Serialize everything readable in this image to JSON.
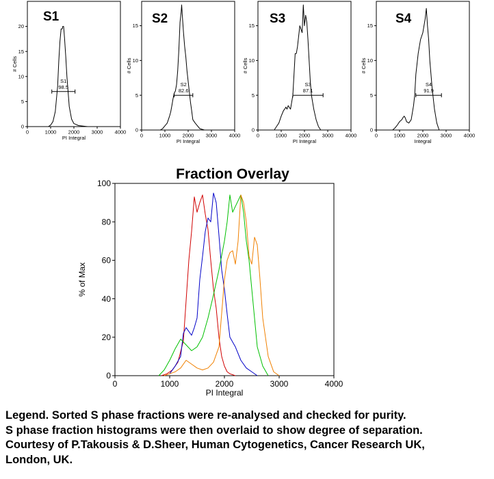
{
  "chart_data": [
    {
      "type": "line",
      "title": "S1",
      "xlabel": "PI Integral",
      "ylabel": "# Cells",
      "xlim": [
        0,
        4000
      ],
      "ylim": [
        0,
        25
      ],
      "xticks": [
        "0",
        "1000",
        "2000",
        "3000",
        "4000"
      ],
      "yticks": [
        "0",
        "5",
        "10",
        "15",
        "20"
      ],
      "gate": {
        "name": "S1",
        "value": "98.5",
        "x_range": [
          1050,
          2050
        ],
        "y": 7
      },
      "series": [
        {
          "color": "#000000",
          "x": [
            900,
            1000,
            1100,
            1200,
            1300,
            1350,
            1400,
            1450,
            1500,
            1520,
            1560,
            1600,
            1650,
            1700,
            1750,
            1800,
            1900,
            2000,
            2200,
            2600
          ],
          "y": [
            0,
            0.3,
            1,
            3,
            8,
            13,
            17,
            19.5,
            19.5,
            20,
            20,
            17.5,
            14,
            10,
            7,
            4,
            1.5,
            0.6,
            0.2,
            0
          ]
        }
      ]
    },
    {
      "type": "line",
      "title": "S2",
      "xlabel": "PI Integral",
      "ylabel": "# Cells",
      "xlim": [
        0,
        4000
      ],
      "ylim": [
        0,
        18.5
      ],
      "xticks": [
        "0",
        "1000",
        "2000",
        "3000",
        "4000"
      ],
      "yticks": [
        "0",
        "5",
        "10",
        "15"
      ],
      "gate": {
        "name": "S2",
        "value": "82.6",
        "x_range": [
          1400,
          2200
        ],
        "y": 5
      },
      "series": [
        {
          "color": "#000000",
          "x": [
            800,
            900,
            1000,
            1100,
            1200,
            1250,
            1300,
            1350,
            1400,
            1450,
            1500,
            1550,
            1600,
            1650,
            1700,
            1720,
            1760,
            1800,
            1850,
            1900,
            1950,
            2000,
            2050,
            2100,
            2150,
            2200,
            2300,
            2500,
            2700
          ],
          "y": [
            0,
            0.2,
            0.6,
            1,
            2,
            2.6,
            3.5,
            4.5,
            5.3,
            5.6,
            6.5,
            8.5,
            11.5,
            15.5,
            17,
            18,
            16,
            14,
            12,
            10.5,
            8.5,
            7,
            5.5,
            4,
            2.8,
            1.5,
            1,
            0.2,
            0
          ]
        }
      ]
    },
    {
      "type": "line",
      "title": "S3",
      "xlabel": "PI Integral",
      "ylabel": "# Cells",
      "xlim": [
        0,
        4000
      ],
      "ylim": [
        0,
        18.5
      ],
      "xticks": [
        "0",
        "1000",
        "2000",
        "3000",
        "4000"
      ],
      "yticks": [
        "0",
        "5",
        "10",
        "15"
      ],
      "gate": {
        "name": "S3",
        "value": "87.1",
        "x_range": [
          1500,
          2800
        ],
        "y": 5
      },
      "series": [
        {
          "color": "#000000",
          "x": [
            700,
            800,
            900,
            1000,
            1100,
            1150,
            1200,
            1250,
            1300,
            1400,
            1500,
            1550,
            1600,
            1650,
            1700,
            1800,
            1900,
            1950,
            2000,
            2050,
            2100,
            2150,
            2200,
            2250,
            2300,
            2400,
            2500,
            2600,
            2700
          ],
          "y": [
            0,
            0.5,
            1,
            2,
            2.8,
            3,
            3.3,
            3,
            3.5,
            3,
            5,
            8,
            11,
            11,
            12,
            15,
            14,
            18,
            15,
            16.5,
            15.5,
            13,
            10,
            7,
            5,
            3,
            1.5,
            0.5,
            0
          ]
        }
      ]
    },
    {
      "type": "line",
      "title": "S4",
      "xlabel": "Integral",
      "ylabel": "# Cells",
      "xlim": [
        0,
        4000
      ],
      "ylim": [
        0,
        18.5
      ],
      "xticks": [
        "0",
        "1000",
        "2000",
        "3000",
        "4000"
      ],
      "yticks": [
        "0",
        "5",
        "10",
        "15"
      ],
      "gate": {
        "name": "S4",
        "value": "91.9",
        "x_range": [
          1700,
          2800
        ],
        "y": 5
      },
      "series": [
        {
          "color": "#000000",
          "x": [
            700,
            800,
            900,
            1000,
            1100,
            1150,
            1200,
            1250,
            1300,
            1400,
            1500,
            1550,
            1600,
            1650,
            1700,
            1800,
            1900,
            2000,
            2050,
            2100,
            2150,
            2200,
            2250,
            2300,
            2400,
            2500,
            2600,
            2700
          ],
          "y": [
            0,
            0.3,
            0.7,
            1.2,
            1.5,
            1.8,
            2,
            1.7,
            1.2,
            1,
            1.5,
            2.5,
            3.5,
            5,
            8,
            11,
            13,
            14,
            15,
            16,
            17.5,
            15,
            13,
            10,
            6,
            3,
            1,
            0
          ]
        }
      ]
    },
    {
      "type": "line",
      "title": "Fraction Overlay",
      "xlabel": "PI Integral",
      "ylabel": "% of Max",
      "xlim": [
        0,
        4000
      ],
      "ylim": [
        0,
        100
      ],
      "xticks": [
        "0",
        "1000",
        "2000",
        "3000",
        "4000"
      ],
      "yticks": [
        "0",
        "20",
        "40",
        "60",
        "80",
        "100"
      ],
      "series": [
        {
          "color": "#d00000",
          "x": [
            850,
            950,
            1050,
            1150,
            1250,
            1350,
            1400,
            1450,
            1500,
            1550,
            1600,
            1650,
            1700,
            1750,
            1800,
            1850,
            1900,
            1950,
            2000,
            2050,
            2100,
            2200
          ],
          "y": [
            0,
            1,
            3,
            7,
            18,
            60,
            75,
            93,
            85,
            90,
            94,
            84,
            76,
            60,
            45,
            35,
            20,
            10,
            5,
            2,
            1,
            0
          ]
        },
        {
          "color": "#0000c8",
          "x": [
            1000,
            1100,
            1200,
            1250,
            1300,
            1350,
            1400,
            1450,
            1500,
            1550,
            1600,
            1650,
            1700,
            1750,
            1800,
            1850,
            1900,
            1950,
            2000,
            2050,
            2100,
            2200,
            2300,
            2400,
            2500,
            2600
          ],
          "y": [
            1,
            5,
            10,
            22,
            25,
            23,
            21,
            25,
            30,
            50,
            62,
            75,
            82,
            80,
            95,
            90,
            73,
            55,
            45,
            32,
            20,
            15,
            8,
            4,
            2,
            0
          ]
        },
        {
          "color": "#00c000",
          "x": [
            800,
            900,
            1000,
            1100,
            1200,
            1300,
            1400,
            1500,
            1600,
            1700,
            1800,
            1900,
            2000,
            2050,
            2100,
            2150,
            2200,
            2250,
            2300,
            2350,
            2400,
            2450,
            2500,
            2550,
            2600,
            2700,
            2800
          ],
          "y": [
            0,
            3,
            8,
            14,
            19,
            16,
            13,
            15,
            20,
            30,
            42,
            55,
            70,
            80,
            94,
            85,
            88,
            91,
            94,
            85,
            70,
            60,
            45,
            30,
            15,
            5,
            0
          ]
        },
        {
          "color": "#f08000",
          "x": [
            900,
            1000,
            1100,
            1200,
            1300,
            1400,
            1500,
            1600,
            1700,
            1800,
            1900,
            2000,
            2050,
            2100,
            2150,
            2200,
            2250,
            2300,
            2350,
            2400,
            2450,
            2500,
            2550,
            2600,
            2650,
            2700,
            2800,
            2900,
            3000
          ],
          "y": [
            0,
            1,
            2,
            4,
            8,
            6,
            4,
            3,
            4,
            7,
            15,
            50,
            60,
            64,
            65,
            58,
            70,
            94,
            90,
            80,
            62,
            58,
            72,
            68,
            50,
            30,
            10,
            2,
            0
          ]
        }
      ]
    }
  ],
  "legend": {
    "line1": "Legend. Sorted S phase fractions were re-analysed and checked for purity.",
    "line2": "S phase fraction histograms were then overlaid to show degree of separation.",
    "line3": "Courtesy of P.Takousis & D.Sheer, Human Cytogenetics, Cancer Research UK,",
    "line4": "London, UK."
  }
}
